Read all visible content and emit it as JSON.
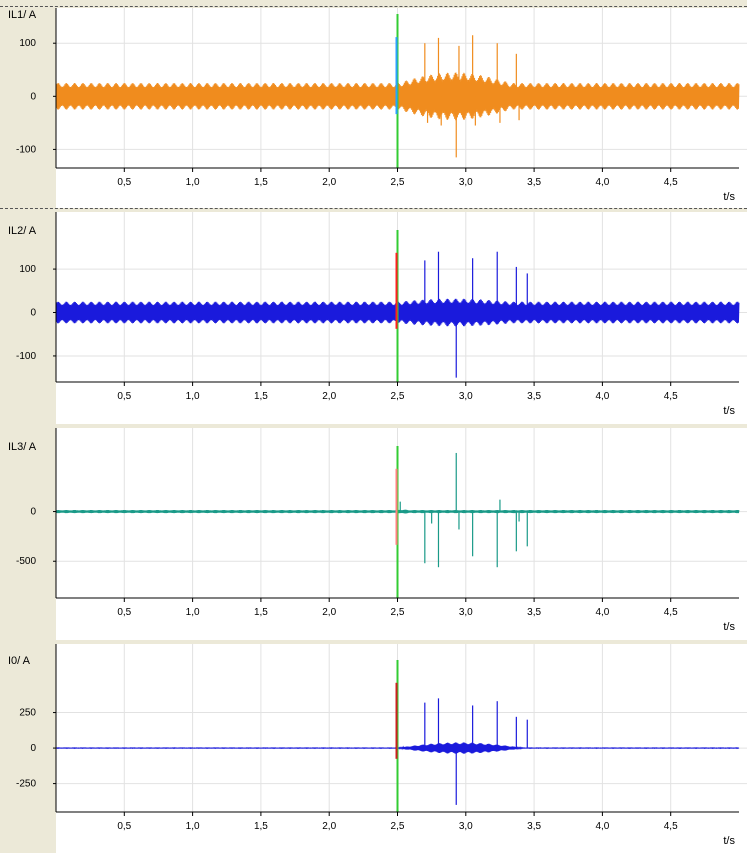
{
  "chart_data": [
    {
      "type": "line",
      "ylabel": "IL1/ A",
      "xlabel": "t/s",
      "xlim": [
        0,
        5
      ],
      "ylim": [
        -135,
        155
      ],
      "x_ticks": [
        "0,5",
        "1,0",
        "1,5",
        "2,0",
        "2,5",
        "3,0",
        "3,5",
        "4,0",
        "4,5"
      ],
      "y_ticks": [
        {
          "v": 100,
          "label": "100"
        },
        {
          "v": 0,
          "label": "0"
        },
        {
          "v": -100,
          "label": "-100"
        }
      ],
      "series_color": "#f08c1e",
      "marker_colors": [
        "#2aa0ff",
        "#33cc33"
      ],
      "baseline_amplitude": 25,
      "fault_amplitude": 45,
      "fault_window": [
        2.5,
        3.5
      ],
      "spikes": [
        [
          2.7,
          100
        ],
        [
          2.72,
          -50
        ],
        [
          2.8,
          110
        ],
        [
          2.82,
          -55
        ],
        [
          2.93,
          -115
        ],
        [
          2.95,
          95
        ],
        [
          3.05,
          115
        ],
        [
          3.07,
          -55
        ],
        [
          3.23,
          100
        ],
        [
          3.25,
          -50
        ],
        [
          3.37,
          80
        ],
        [
          3.39,
          -45
        ]
      ]
    },
    {
      "type": "line",
      "ylabel": "IL2/ A",
      "xlabel": "t/s",
      "xlim": [
        0,
        5
      ],
      "ylim": [
        -160,
        190
      ],
      "x_ticks": [
        "0,5",
        "1,0",
        "1,5",
        "2,0",
        "2,5",
        "3,0",
        "3,5",
        "4,0",
        "4,5"
      ],
      "y_ticks": [
        {
          "v": 100,
          "label": "100"
        },
        {
          "v": 0,
          "label": "0"
        },
        {
          "v": -100,
          "label": "-100"
        }
      ],
      "series_color": "#1a1adc",
      "marker_colors": [
        "#ff2020",
        "#33cc33"
      ],
      "baseline_amplitude": 25,
      "fault_amplitude": 32,
      "fault_window": [
        2.5,
        3.5
      ],
      "spikes": [
        [
          2.7,
          120
        ],
        [
          2.8,
          140
        ],
        [
          2.93,
          -150
        ],
        [
          3.05,
          125
        ],
        [
          3.23,
          140
        ],
        [
          3.37,
          105
        ],
        [
          3.45,
          90
        ]
      ]
    },
    {
      "type": "line",
      "ylabel": "IL3/ A",
      "xlabel": "t/s",
      "xlim": [
        0,
        5
      ],
      "ylim": [
        -870,
        660
      ],
      "x_ticks": [
        "0,5",
        "1,0",
        "1,5",
        "2,0",
        "2,5",
        "3,0",
        "3,5",
        "4,0",
        "4,5"
      ],
      "y_ticks": [
        {
          "v": 0,
          "label": "0"
        },
        {
          "v": -500,
          "label": "-500"
        }
      ],
      "series_color": "#1a9a88",
      "marker_colors": [
        "#ff8080",
        "#33cc33"
      ],
      "baseline_amplitude": 15,
      "fault_amplitude": 20,
      "fault_window": [
        2.5,
        2.6
      ],
      "spikes": [
        [
          2.52,
          100
        ],
        [
          2.7,
          -520
        ],
        [
          2.75,
          -120
        ],
        [
          2.8,
          -560
        ],
        [
          2.93,
          590
        ],
        [
          2.95,
          -180
        ],
        [
          3.05,
          -450
        ],
        [
          3.23,
          -560
        ],
        [
          3.25,
          120
        ],
        [
          3.37,
          -400
        ],
        [
          3.39,
          -100
        ],
        [
          3.45,
          -350
        ]
      ]
    },
    {
      "type": "line",
      "ylabel": "I0/ A",
      "xlabel": "t/s",
      "xlim": [
        0,
        5
      ],
      "ylim": [
        -450,
        620
      ],
      "x_ticks": [
        "0,5",
        "1,0",
        "1,5",
        "2,0",
        "2,5",
        "3,0",
        "3,5",
        "4,0",
        "4,5"
      ],
      "y_ticks": [
        {
          "v": 250,
          "label": "250"
        },
        {
          "v": 0,
          "label": "0"
        },
        {
          "v": -250,
          "label": "-250"
        }
      ],
      "series_color": "#1a1adc",
      "marker_colors": [
        "#cc2020",
        "#33cc33"
      ],
      "baseline_amplitude": 2,
      "fault_amplitude": 40,
      "fault_window": [
        2.5,
        3.6
      ],
      "spikes": [
        [
          2.5,
          -180
        ],
        [
          2.7,
          320
        ],
        [
          2.8,
          350
        ],
        [
          2.93,
          -400
        ],
        [
          3.05,
          300
        ],
        [
          3.23,
          330
        ],
        [
          3.37,
          220
        ],
        [
          3.45,
          200
        ]
      ]
    }
  ]
}
